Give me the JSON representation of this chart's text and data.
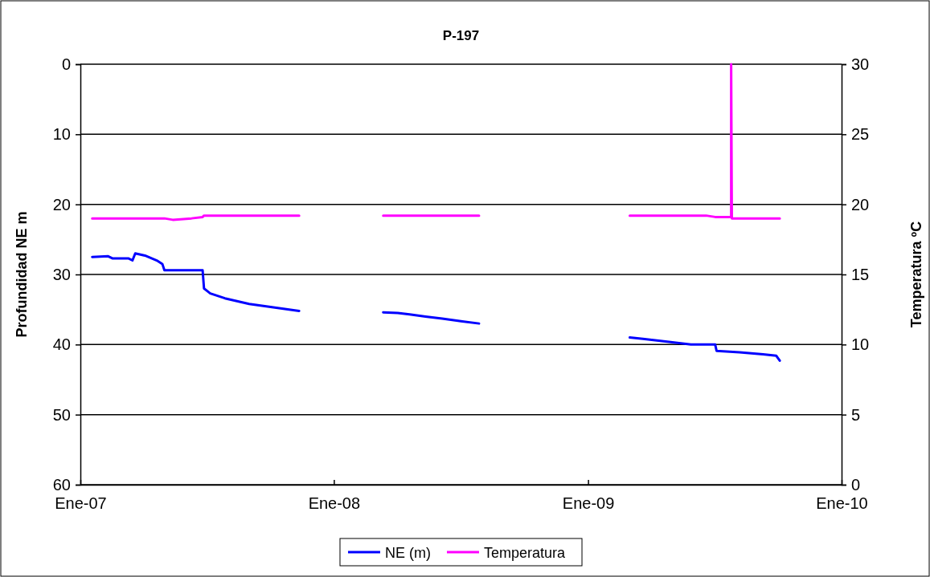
{
  "chart_data": {
    "type": "line",
    "title": "P-197",
    "ylabel": "Profundidad NE m",
    "y2label": "Temperatura ºC",
    "xlim": [
      "2007-01-01",
      "2010-01-01"
    ],
    "xticks": [
      {
        "value": "2007-01-01",
        "label": "Ene-07"
      },
      {
        "value": "2008-01-01",
        "label": "Ene-08"
      },
      {
        "value": "2009-01-01",
        "label": "Ene-09"
      },
      {
        "value": "2010-01-01",
        "label": "Ene-10"
      }
    ],
    "ylim": [
      60,
      0
    ],
    "yticks": [
      0,
      10,
      20,
      30,
      40,
      50,
      60
    ],
    "y2lim": [
      0,
      30
    ],
    "y2ticks": [
      0,
      5,
      10,
      15,
      20,
      25,
      30
    ],
    "grid": "y",
    "legend": "bottom",
    "line_style": "solid",
    "series": [
      {
        "name": "NE (m)",
        "color": "#0000ff",
        "x": [
          "2007-01-18",
          "2007-02-10",
          "2007-02-16",
          "2007-03-11",
          "2007-03-17",
          "2007-03-21",
          "2007-04-04",
          "2007-04-21",
          "2007-04-29",
          "2007-05-02",
          "2007-06-26",
          "2007-06-28",
          "2007-07-07",
          "2007-07-28",
          "2007-09-01",
          "2007-10-06",
          "2007-11-12",
          "2007-12-20",
          "2008-03-12",
          "2008-04-02",
          "2008-04-19",
          "2008-05-12",
          "2008-06-05",
          "2008-07-04",
          "2008-07-28",
          "2008-10-01",
          "2009-03-02",
          "2009-03-21",
          "2009-04-25",
          "2009-05-29",
          "2009-07-03",
          "2009-07-05",
          "2009-08-07",
          "2009-09-10",
          "2009-09-29",
          "2009-10-04"
        ],
        "values": [
          27.5,
          27.4,
          27.7,
          27.7,
          28.0,
          27.0,
          27.3,
          28.0,
          28.5,
          29.4,
          29.4,
          32.0,
          32.7,
          33.4,
          34.2,
          34.7,
          35.2,
          null,
          35.4,
          35.5,
          35.7,
          36.0,
          36.3,
          36.7,
          37.0,
          null,
          39.0,
          39.2,
          39.6,
          40.0,
          40.0,
          40.9,
          41.1,
          41.4,
          41.6,
          42.3
        ]
      },
      {
        "name": "Temperatura",
        "color": "#ff00ff",
        "axis": "y2",
        "x": [
          "2007-01-18",
          "2007-05-02",
          "2007-05-14",
          "2007-06-10",
          "2007-06-26",
          "2007-06-28",
          "2007-11-12",
          "2007-12-20",
          "2008-03-12",
          "2008-07-28",
          "2008-10-01",
          "2009-03-02",
          "2009-06-20",
          "2009-07-03",
          "2009-07-26",
          "2009-07-26",
          "2009-07-27",
          "2009-10-04"
        ],
        "values": [
          19.0,
          19.0,
          18.9,
          19.0,
          19.1,
          19.2,
          19.2,
          null,
          19.2,
          19.2,
          null,
          19.2,
          19.2,
          19.1,
          19.1,
          30,
          19.0,
          19.0
        ]
      }
    ]
  }
}
